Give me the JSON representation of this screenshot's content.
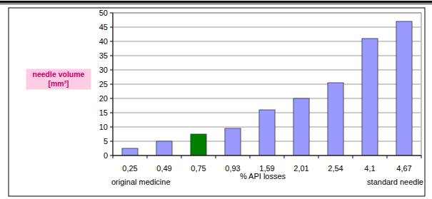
{
  "chart_data": {
    "type": "bar",
    "categories": [
      "0,25",
      "0,49",
      "0,75",
      "0,93",
      "1,59",
      "2,01",
      "2,54",
      "4,1",
      "4,67"
    ],
    "values": [
      2.5,
      5,
      7.5,
      9.5,
      16,
      20,
      25.5,
      41,
      47
    ],
    "colors": [
      "#9999ff",
      "#9999ff",
      "#008000",
      "#9999ff",
      "#9999ff",
      "#9999ff",
      "#9999ff",
      "#9999ff",
      "#9999ff"
    ],
    "x_label": "% API losses",
    "y_label": "needle volume [mm³]",
    "annotations": [
      {
        "text": "original medicine",
        "category": "0,25"
      },
      {
        "text": "standard needle",
        "category": "4,67"
      }
    ],
    "ylim": [
      0,
      50
    ],
    "yticks": [
      0,
      5,
      10,
      15,
      20,
      25,
      30,
      35,
      40,
      45,
      50
    ],
    "grid": true
  }
}
